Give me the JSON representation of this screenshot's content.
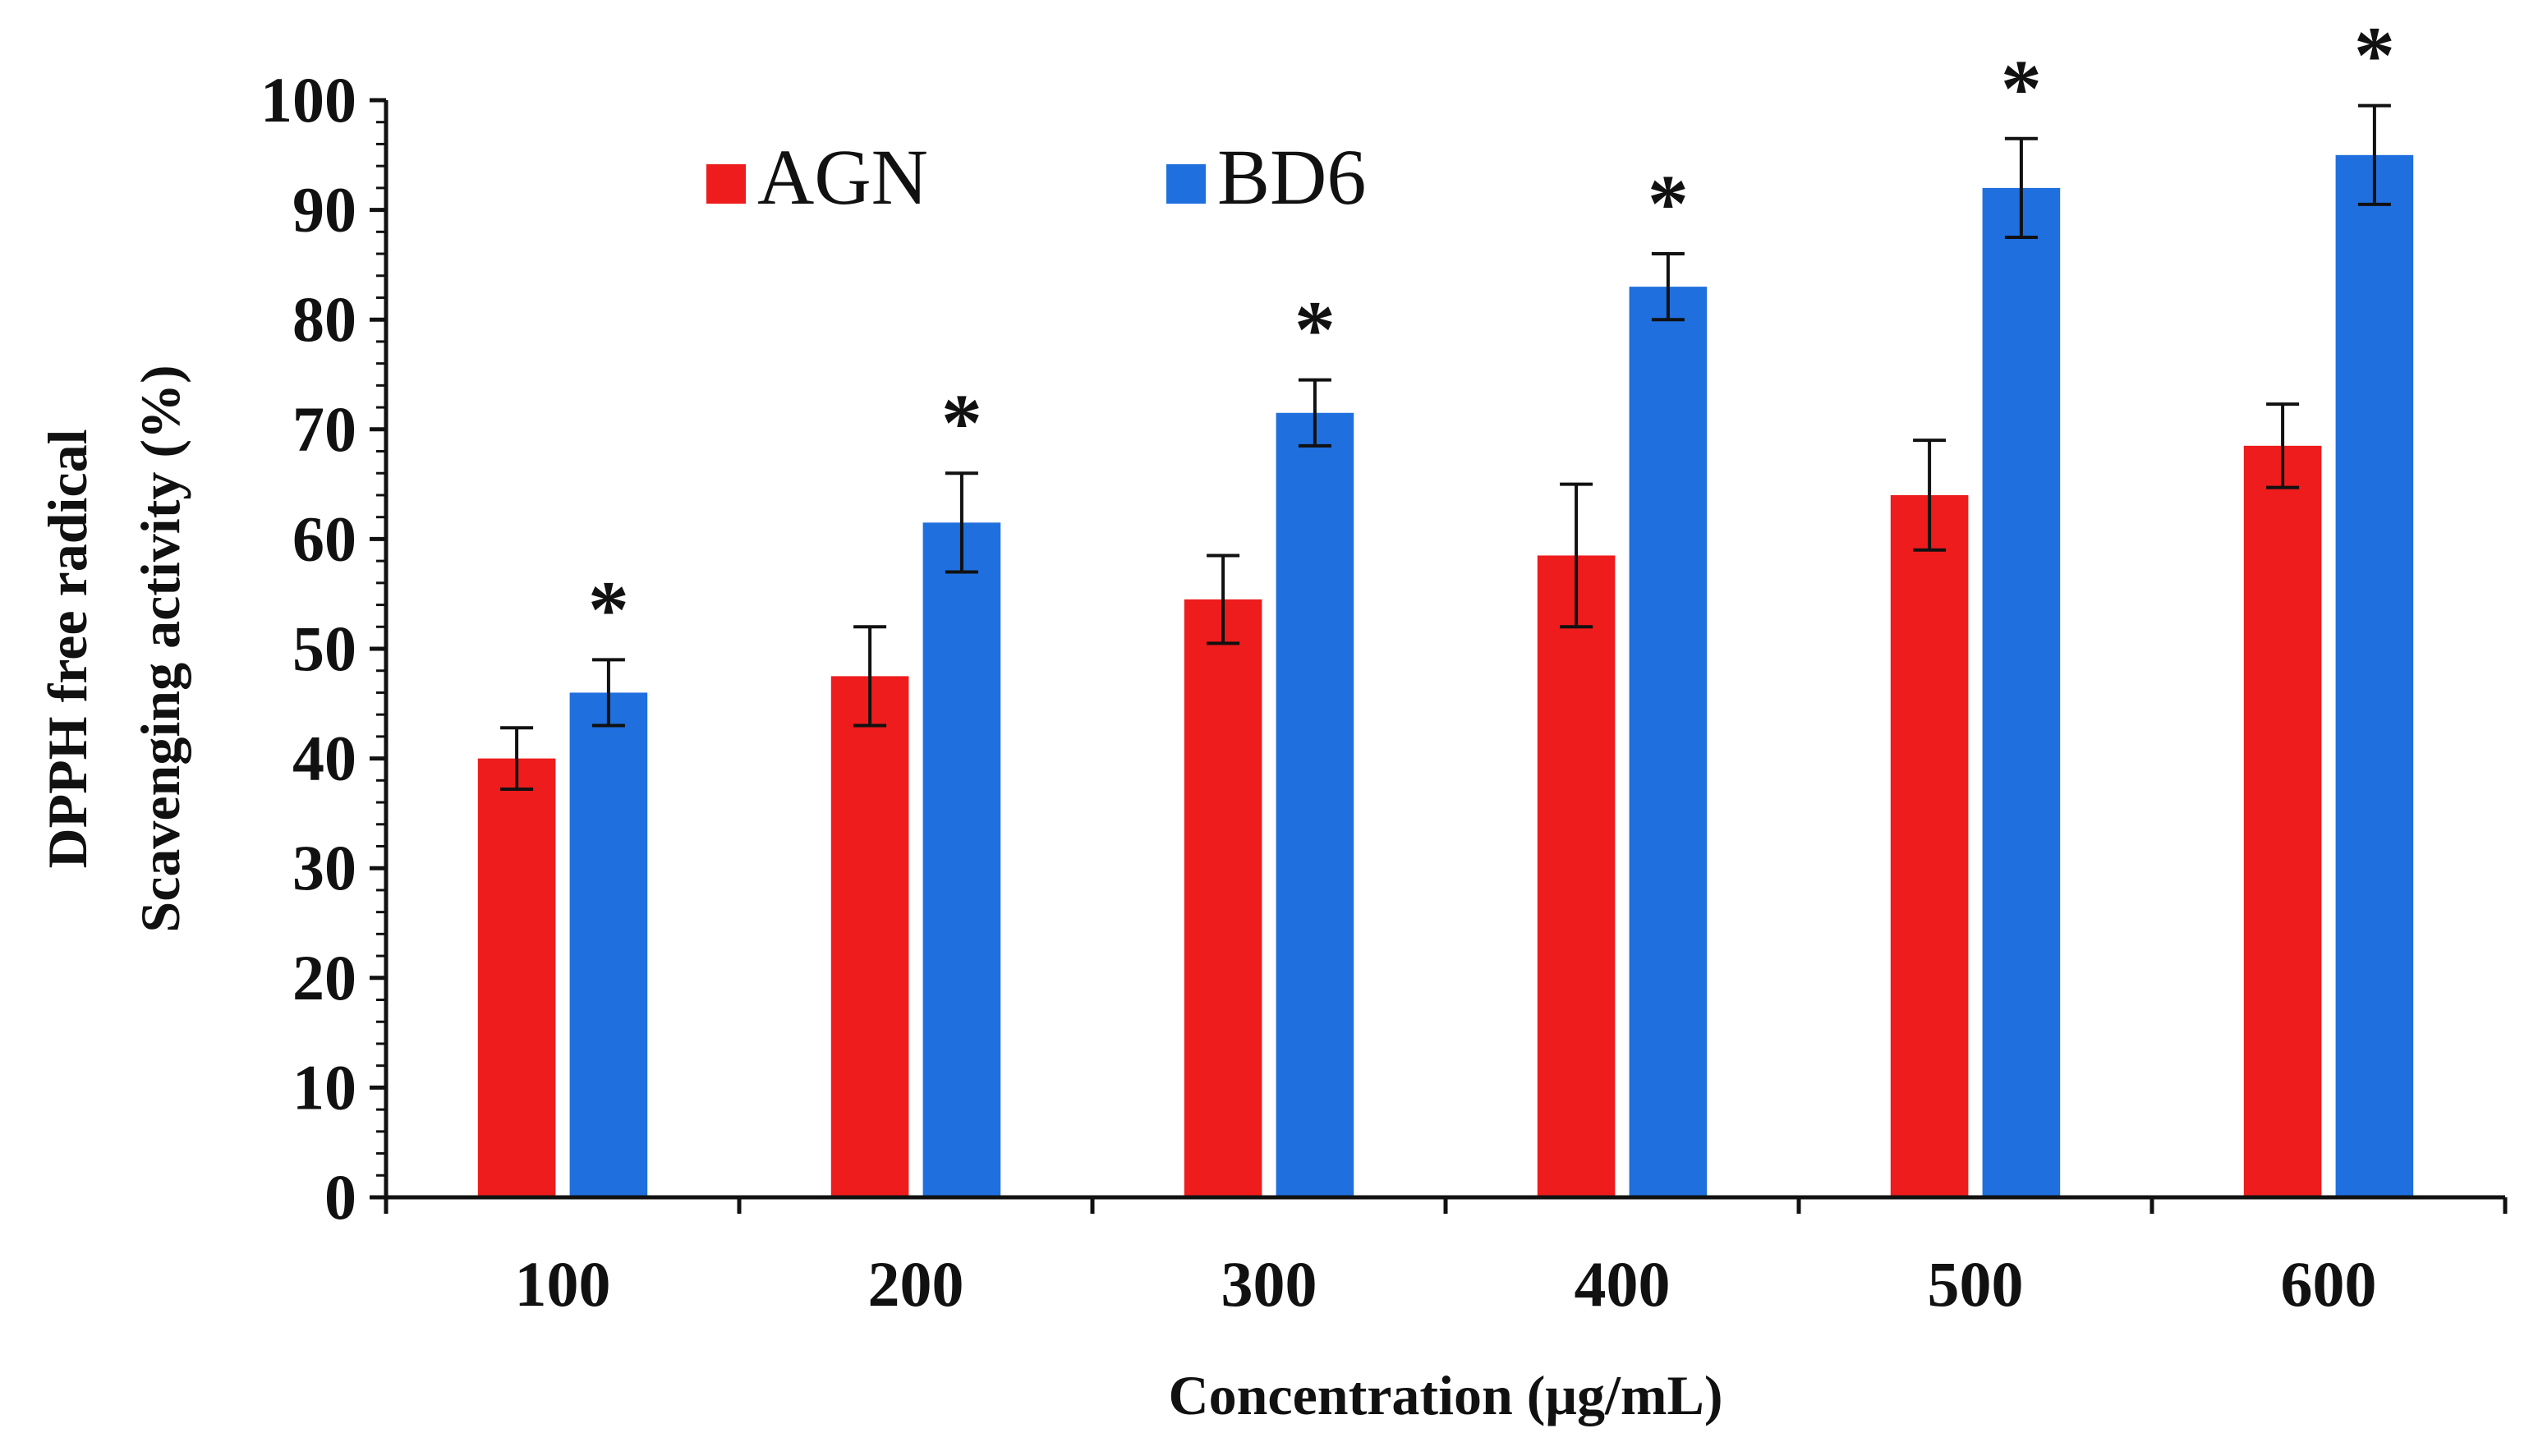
{
  "chart_data": {
    "type": "bar",
    "categories": [
      "100",
      "200",
      "300",
      "400",
      "500",
      "600"
    ],
    "series": [
      {
        "name": "AGN",
        "color": "#ee1c1c",
        "values": [
          40,
          47.5,
          54.5,
          58.5,
          64,
          68.5
        ],
        "errors": [
          2.8,
          4.5,
          4,
          6.5,
          5,
          3.8
        ],
        "marks": [
          "",
          "",
          "",
          "",
          "",
          ""
        ]
      },
      {
        "name": "BD6",
        "color": "#1f6fde",
        "values": [
          46,
          61.5,
          71.5,
          83,
          92,
          95
        ],
        "errors": [
          3,
          4.5,
          3,
          3,
          4.5,
          4.5
        ],
        "marks": [
          "*",
          "*",
          "*",
          "*",
          "*",
          "*"
        ]
      }
    ],
    "xlabel": "Concentration  (μg/mL)",
    "ylabel_lines": [
      "DPPH free radical",
      "Scavenging activity (%)"
    ],
    "ylim": [
      0,
      100
    ],
    "yticks": [
      "0",
      "10",
      "20",
      "30",
      "40",
      "50",
      "60",
      "70",
      "80",
      "90",
      "100"
    ],
    "legend_position": "top-left"
  }
}
